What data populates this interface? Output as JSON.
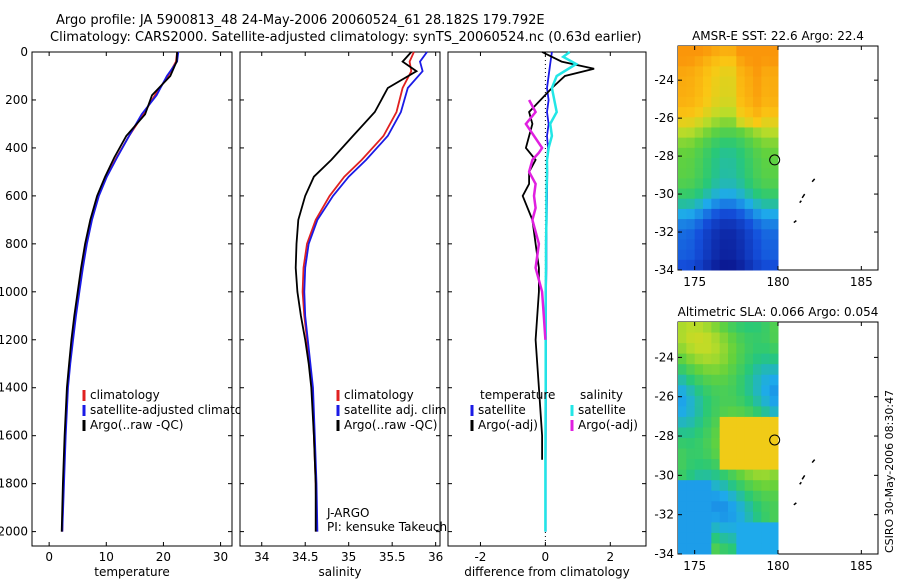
{
  "titles": {
    "line1": "Argo profile: JA 5900813_48 24-May-2006 20060524_61 28.182S 179.792E",
    "line2": "Climatology: CARS2000. Satellite-adjusted climatology: synTS_20060524.nc (0.63d earlier)"
  },
  "side_label": "CSIRO 30-May-2006 08:30:47",
  "colors": {
    "red": "#e02020",
    "blue": "#1a1ae6",
    "black": "#000000",
    "cyan": "#22e6e6",
    "magenta": "#e020e0"
  },
  "chart_data": [
    {
      "type": "line",
      "xlabel": "temperature",
      "xlim": [
        -3,
        32
      ],
      "ylim": [
        0,
        2060
      ],
      "xticks": [
        0,
        10,
        20,
        30
      ],
      "yticks": [
        0,
        200,
        400,
        600,
        800,
        1000,
        1200,
        1400,
        1600,
        1800,
        2000
      ],
      "legend": {
        "placement": "bottom-right",
        "items": [
          {
            "text": "climatology",
            "color": "red"
          },
          {
            "text": "satellite-adjusted climatology",
            "color": "blue"
          },
          {
            "text": "Argo(..raw -QC)",
            "color": "black"
          }
        ]
      },
      "series": [
        {
          "color": "red",
          "x": [
            22.4,
            22.2,
            20.8,
            18.5,
            16.5,
            14.0,
            11.8,
            10.0,
            8.6,
            7.4,
            6.5,
            5.8,
            5.2,
            4.6,
            4.1,
            3.6,
            3.2,
            2.8,
            2.5,
            2.3
          ],
          "y": [
            0,
            40,
            100,
            180,
            260,
            350,
            440,
            520,
            600,
            700,
            800,
            900,
            1000,
            1100,
            1200,
            1300,
            1400,
            1600,
            1800,
            2000
          ]
        },
        {
          "color": "blue",
          "x": [
            22.6,
            22.4,
            20.6,
            18.8,
            16.2,
            14.0,
            11.9,
            10.1,
            8.7,
            7.5,
            6.6,
            5.9,
            5.3,
            4.7,
            4.2,
            3.7,
            3.3,
            2.9,
            2.6,
            2.3
          ],
          "y": [
            0,
            40,
            100,
            180,
            260,
            350,
            440,
            520,
            600,
            700,
            800,
            900,
            1000,
            1100,
            1200,
            1300,
            1400,
            1600,
            1800,
            2000
          ]
        },
        {
          "color": "black",
          "x": [
            22.4,
            22.3,
            21.2,
            18.0,
            16.8,
            13.5,
            11.4,
            9.8,
            8.4,
            7.2,
            6.3,
            5.6,
            5.0,
            4.4,
            3.9,
            3.5,
            3.1,
            2.7,
            2.4,
            2.2
          ],
          "y": [
            0,
            40,
            100,
            180,
            260,
            350,
            440,
            520,
            600,
            700,
            800,
            900,
            1000,
            1100,
            1200,
            1300,
            1400,
            1600,
            1800,
            2000
          ]
        }
      ]
    },
    {
      "type": "line",
      "xlabel": "salinity",
      "xlim": [
        33.75,
        36.05
      ],
      "ylim": [
        0,
        2060
      ],
      "xticks": [
        34,
        34.5,
        35,
        35.5,
        36
      ],
      "yticks": [
        0,
        200,
        400,
        600,
        800,
        1000,
        1200,
        1400,
        1600,
        1800,
        2000
      ],
      "legend": {
        "placement": "bottom-right",
        "items": [
          {
            "text": "climatology",
            "color": "red"
          },
          {
            "text": "satellite adj. clim.",
            "color": "blue"
          },
          {
            "text": "Argo(..raw -QC)",
            "color": "black"
          }
        ]
      },
      "annotations": [
        "J-ARGO",
        "PI: kensuke Takeuchi"
      ],
      "series": [
        {
          "color": "red",
          "x": [
            35.75,
            35.7,
            35.72,
            35.62,
            35.55,
            35.4,
            35.15,
            34.95,
            34.78,
            34.62,
            34.52,
            34.48,
            34.47,
            34.49,
            34.52,
            34.55,
            34.58,
            34.6,
            34.62,
            34.63
          ],
          "y": [
            0,
            40,
            80,
            150,
            250,
            350,
            450,
            520,
            600,
            700,
            800,
            900,
            1000,
            1100,
            1200,
            1300,
            1400,
            1600,
            1800,
            2000
          ]
        },
        {
          "color": "blue",
          "x": [
            35.9,
            35.82,
            35.85,
            35.68,
            35.6,
            35.45,
            35.2,
            35.0,
            34.82,
            34.64,
            34.54,
            34.5,
            34.49,
            34.5,
            34.53,
            34.56,
            34.59,
            34.61,
            34.63,
            34.64
          ],
          "y": [
            0,
            40,
            80,
            150,
            250,
            350,
            450,
            520,
            600,
            700,
            800,
            900,
            1000,
            1100,
            1200,
            1300,
            1400,
            1600,
            1800,
            2000
          ]
        },
        {
          "color": "black",
          "x": [
            35.72,
            35.62,
            35.78,
            35.45,
            35.3,
            35.05,
            34.8,
            34.6,
            34.5,
            34.42,
            34.4,
            34.39,
            34.41,
            34.45,
            34.5,
            34.54,
            34.57,
            34.6,
            34.62,
            34.62
          ],
          "y": [
            0,
            40,
            80,
            150,
            250,
            350,
            450,
            520,
            600,
            700,
            800,
            900,
            1000,
            1100,
            1200,
            1300,
            1400,
            1600,
            1800,
            2000
          ]
        }
      ]
    },
    {
      "type": "line",
      "xlabel": "difference from climatology",
      "xlim": [
        -3,
        3.1
      ],
      "ylim": [
        0,
        2060
      ],
      "xticks": [
        -2,
        0,
        2
      ],
      "yticks": [
        0,
        200,
        400,
        600,
        800,
        1000,
        1200,
        1400,
        1600,
        1800,
        2000
      ],
      "legend": {
        "placement": "bottom",
        "items": [
          {
            "text": "temperature",
            "color": ""
          },
          {
            "text": "satellite",
            "color": "blue"
          },
          {
            "text": "Argo(-adj)",
            "color": "black"
          },
          {
            "text": "salinity",
            "color": ""
          },
          {
            "text": "satellite",
            "color": "cyan"
          },
          {
            "text": "Argo(-adj)",
            "color": "magenta"
          }
        ]
      },
      "series": [
        {
          "color": "blue",
          "x": [
            0.2,
            0.15,
            0.1,
            0.05,
            0.1,
            0.05,
            0.1,
            0.05,
            0.08,
            0.05,
            0.06,
            0.05,
            0.04,
            0.03,
            0.03,
            0.02,
            0.02,
            0.02,
            0.01,
            0.01
          ],
          "y": [
            0,
            50,
            100,
            150,
            200,
            250,
            300,
            350,
            400,
            450,
            500,
            600,
            700,
            800,
            900,
            1000,
            1200,
            1400,
            1700,
            2000
          ]
        },
        {
          "color": "black",
          "x": [
            -0.1,
            0.5,
            1.5,
            0.6,
            0.2,
            -0.5,
            -0.4,
            -0.6,
            -0.3,
            -0.5,
            -0.5,
            -0.7,
            -0.4,
            -0.3,
            -0.2,
            -0.2,
            -0.3,
            -0.2,
            -0.1,
            -0.1
          ],
          "y": [
            0,
            40,
            70,
            100,
            150,
            250,
            300,
            400,
            450,
            500,
            550,
            600,
            700,
            800,
            900,
            1000,
            1200,
            1400,
            1600,
            1700
          ]
        },
        {
          "color": "cyan",
          "x": [
            0.75,
            0.55,
            0.95,
            0.35,
            0.2,
            0.35,
            0.15,
            0.2,
            0.1,
            0.05,
            0.05,
            0.03,
            0.03,
            0.02,
            0.02,
            0.01,
            0.01,
            0.01,
            0.0,
            0.0
          ],
          "y": [
            0,
            20,
            50,
            100,
            150,
            250,
            300,
            350,
            400,
            450,
            500,
            600,
            700,
            800,
            900,
            1000,
            1200,
            1400,
            1700,
            2000
          ]
        },
        {
          "color": "magenta",
          "x": [
            -0.5,
            -0.3,
            -0.6,
            -0.1,
            -0.2,
            -0.4,
            -0.5,
            -0.3,
            -0.35,
            -0.3,
            -0.4,
            -0.2,
            -0.3,
            -0.1,
            -0.05,
            0.0
          ],
          "y": [
            200,
            250,
            300,
            400,
            420,
            450,
            500,
            550,
            600,
            650,
            700,
            800,
            900,
            1000,
            1100,
            1200
          ]
        }
      ]
    },
    {
      "type": "heatmap",
      "title": "AMSR-E SST: 22.6 Argo: 22.4",
      "xlim": [
        174,
        186
      ],
      "ylim": [
        -34,
        -22.2
      ],
      "xticks": [
        175,
        180,
        185
      ],
      "yticks": [
        -24,
        -26,
        -28,
        -30,
        -32,
        -34
      ],
      "marker": {
        "x": 179.8,
        "y": -28.2
      }
    },
    {
      "type": "heatmap",
      "title": "Altimetric SLA: 0.066 Argo: 0.054",
      "xlim": [
        174,
        186
      ],
      "ylim": [
        -34,
        -22.2
      ],
      "xticks": [
        175,
        180,
        185
      ],
      "yticks": [
        -24,
        -26,
        -28,
        -30,
        -32,
        -34
      ],
      "marker": {
        "x": 179.8,
        "y": -28.2
      }
    }
  ]
}
